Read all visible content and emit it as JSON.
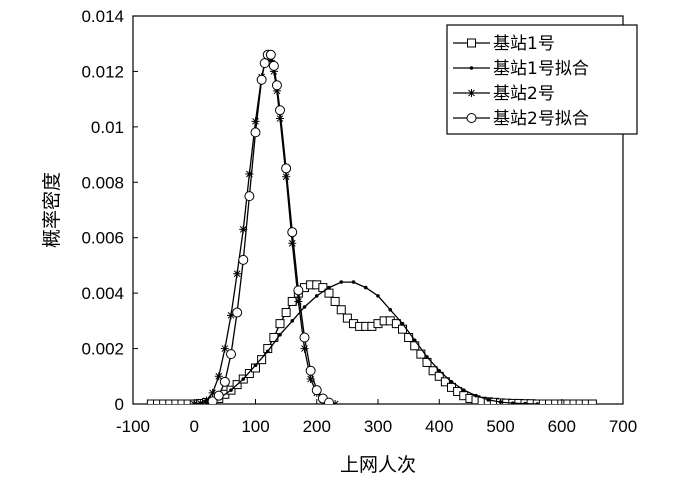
{
  "chart_data": {
    "type": "line",
    "xlabel": "上网人次",
    "ylabel": "概率密度",
    "xlim": [
      -100,
      700
    ],
    "ylim": [
      0,
      0.014
    ],
    "xticks": [
      "-100",
      "0",
      "100",
      "200",
      "300",
      "400",
      "500",
      "600",
      "700"
    ],
    "yticks": [
      "0",
      "0.002",
      "0.004",
      "0.006",
      "0.008",
      "0.01",
      "0.012",
      "0.014"
    ],
    "legend_position": "top-right",
    "grid": false,
    "series": [
      {
        "name": "基站1号",
        "marker": "square",
        "x": [
          -70,
          -60,
          -50,
          -40,
          -30,
          -20,
          -10,
          0,
          10,
          20,
          30,
          40,
          50,
          60,
          70,
          80,
          90,
          100,
          110,
          120,
          130,
          140,
          150,
          160,
          170,
          180,
          190,
          200,
          210,
          220,
          230,
          240,
          250,
          260,
          270,
          280,
          290,
          300,
          310,
          320,
          330,
          340,
          350,
          360,
          370,
          380,
          390,
          400,
          410,
          420,
          430,
          440,
          450,
          460,
          470,
          480,
          490,
          500,
          510,
          520,
          530,
          540,
          550,
          560,
          570,
          580,
          590,
          600,
          610,
          620,
          630,
          640,
          650
        ],
        "y": [
          0,
          0,
          0,
          0,
          0,
          0,
          0,
          0,
          2e-05,
          5e-05,
          0.0001,
          0.0002,
          0.00035,
          0.0005,
          0.0007,
          0.0009,
          0.0011,
          0.0013,
          0.0016,
          0.002,
          0.0024,
          0.0029,
          0.0033,
          0.0037,
          0.004,
          0.0042,
          0.0043,
          0.0043,
          0.0042,
          0.004,
          0.0037,
          0.0034,
          0.0031,
          0.0029,
          0.0028,
          0.0028,
          0.0028,
          0.0029,
          0.003,
          0.003,
          0.0029,
          0.0027,
          0.0024,
          0.0021,
          0.0018,
          0.0015,
          0.0012,
          0.001,
          0.0008,
          0.0006,
          0.00045,
          0.0003,
          0.0002,
          0.00015,
          0.0001,
          8e-05,
          6e-05,
          4e-05,
          3e-05,
          2e-05,
          2e-05,
          1e-05,
          1e-05,
          0,
          0,
          0,
          0,
          0,
          0,
          0,
          0,
          0,
          0
        ]
      },
      {
        "name": "基站1号拟合",
        "marker": "dot",
        "x": [
          0,
          20,
          40,
          60,
          80,
          100,
          120,
          140,
          160,
          180,
          200,
          220,
          240,
          260,
          280,
          300,
          320,
          340,
          360,
          380,
          400,
          420,
          440,
          460,
          480,
          500,
          520,
          540,
          560
        ],
        "y": [
          0,
          5e-05,
          0.0002,
          0.0005,
          0.0009,
          0.0014,
          0.0019,
          0.0025,
          0.003,
          0.0035,
          0.0039,
          0.0042,
          0.0044,
          0.0044,
          0.0042,
          0.0039,
          0.0034,
          0.0029,
          0.0023,
          0.0017,
          0.0012,
          0.0008,
          0.0005,
          0.0003,
          0.00015,
          7e-05,
          3e-05,
          1e-05,
          0
        ]
      },
      {
        "name": "基站2号",
        "marker": "asterisk",
        "x": [
          0,
          10,
          20,
          30,
          40,
          50,
          60,
          70,
          80,
          90,
          100,
          110,
          115,
          120,
          125,
          130,
          135,
          140,
          150,
          160,
          170,
          180,
          190,
          200,
          210,
          220,
          230
        ],
        "y": [
          0,
          3e-05,
          0.00012,
          0.0004,
          0.001,
          0.002,
          0.0032,
          0.0047,
          0.0063,
          0.0083,
          0.0102,
          0.0118,
          0.0123,
          0.0125,
          0.0124,
          0.012,
          0.0113,
          0.0103,
          0.0082,
          0.0058,
          0.0037,
          0.002,
          0.0009,
          0.0004,
          0.00015,
          5e-05,
          0
        ]
      },
      {
        "name": "基站2号拟合",
        "marker": "circle",
        "x": [
          30,
          40,
          50,
          60,
          70,
          80,
          90,
          100,
          110,
          115,
          120,
          125,
          130,
          135,
          140,
          150,
          160,
          170,
          180,
          190,
          200,
          210,
          220
        ],
        "y": [
          0.0001,
          0.0003,
          0.0008,
          0.0018,
          0.0033,
          0.0052,
          0.0075,
          0.0098,
          0.0117,
          0.0123,
          0.0126,
          0.0126,
          0.0122,
          0.0115,
          0.0106,
          0.0085,
          0.0062,
          0.0041,
          0.0024,
          0.0012,
          0.0005,
          0.0002,
          5e-05
        ]
      }
    ]
  }
}
